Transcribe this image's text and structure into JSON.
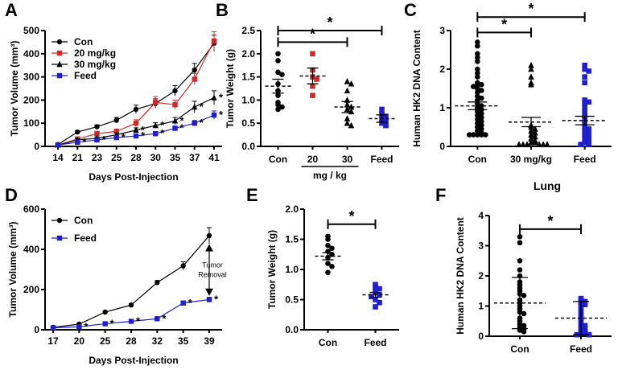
{
  "chart_data": [
    {
      "panel": "A",
      "type": "line",
      "xlabel": "Days Post-Injection",
      "ylabel": "Tumor Volume (mm³)",
      "x": [
        14,
        21,
        23,
        25,
        28,
        30,
        35,
        37,
        41
      ],
      "ylim": [
        0,
        500
      ],
      "yticks": [
        0,
        100,
        200,
        300,
        400,
        500
      ],
      "legend_position": "top-left",
      "series": [
        {
          "name": "Con",
          "color": "#000000",
          "marker": "circle",
          "values": [
            8,
            62,
            85,
            113,
            160,
            185,
            240,
            330,
            445
          ],
          "err": [
            3,
            6,
            8,
            12,
            18,
            20,
            22,
            28,
            35
          ]
        },
        {
          "name": "20 mg/kg",
          "color": "#d62728",
          "marker": "square",
          "values": [
            6,
            32,
            55,
            65,
            100,
            190,
            180,
            290,
            455
          ],
          "err": [
            3,
            8,
            10,
            10,
            15,
            25,
            20,
            25,
            40
          ]
        },
        {
          "name": "30 mg/kg",
          "color": "#000000",
          "marker": "triangle",
          "values": [
            6,
            28,
            35,
            50,
            70,
            90,
            110,
            170,
            210
          ],
          "err": [
            3,
            5,
            6,
            8,
            10,
            12,
            15,
            25,
            30
          ]
        },
        {
          "name": "Feed",
          "color": "#1f1fd0",
          "marker": "square",
          "values": [
            6,
            18,
            28,
            38,
            45,
            55,
            78,
            100,
            135
          ],
          "err": [
            2,
            3,
            4,
            5,
            6,
            8,
            10,
            12,
            18
          ]
        }
      ],
      "significance": "*"
    },
    {
      "panel": "B",
      "type": "scatter",
      "ylabel": "Tumor Weight (g)",
      "categories": [
        "Con",
        "20",
        "30",
        "Feed"
      ],
      "group_label": "mg / kg",
      "ylim": [
        0,
        2.5
      ],
      "yticks": [
        0.0,
        0.5,
        1.0,
        1.5,
        2.0,
        2.5
      ],
      "groups": [
        {
          "name": "Con",
          "color": "#000000",
          "marker": "circle",
          "mean": 1.3,
          "sem": 0.15,
          "points": [
            2.0,
            1.85,
            1.6,
            1.55,
            1.35,
            1.2,
            1.1,
            0.95,
            0.9,
            0.85,
            0.8
          ]
        },
        {
          "name": "20",
          "color": "#d62728",
          "marker": "square",
          "mean": 1.52,
          "sem": 0.17,
          "points": [
            2.0,
            1.65,
            1.5,
            1.45,
            1.3,
            1.1
          ]
        },
        {
          "name": "30",
          "color": "#000000",
          "marker": "triangle",
          "mean": 0.85,
          "sem": 0.12,
          "points": [
            1.4,
            1.35,
            1.2,
            1.0,
            0.9,
            0.85,
            0.8,
            0.75,
            0.6,
            0.5,
            0.45
          ]
        },
        {
          "name": "Feed",
          "color": "#1f1fd0",
          "marker": "square",
          "mean": 0.6,
          "sem": 0.08,
          "points": [
            0.8,
            0.7,
            0.65,
            0.6,
            0.55,
            0.5,
            0.45
          ]
        }
      ],
      "brackets": [
        {
          "from": "Con",
          "to": "30",
          "y": 2.25,
          "label": "*"
        },
        {
          "from": "Con",
          "to": "Feed",
          "y": 2.5,
          "label": "*"
        }
      ]
    },
    {
      "panel": "C",
      "type": "scatter",
      "ylabel": "Human HK2 DNA Content",
      "categories": [
        "Con",
        "30 mg/kg",
        "Feed"
      ],
      "ylim": [
        0,
        3
      ],
      "yticks": [
        0,
        1,
        2,
        3
      ],
      "groups": [
        {
          "name": "Con",
          "color": "#000000",
          "marker": "circle",
          "mean": 1.05,
          "sem": 0.1,
          "points": [
            2.7,
            2.6,
            2.4,
            2.3,
            2.2,
            2.0,
            1.9,
            1.8,
            1.65,
            1.6,
            1.6,
            1.55,
            1.5,
            1.45,
            1.4,
            1.3,
            1.25,
            1.2,
            1.1,
            1.05,
            1.0,
            0.95,
            0.9,
            0.85,
            0.8,
            0.75,
            0.7,
            0.65,
            0.6,
            0.55,
            0.5,
            0.45,
            0.4,
            0.35,
            0.3,
            0.3,
            0.3,
            0.3,
            0.3
          ]
        },
        {
          "name": "30 mg/kg",
          "color": "#000000",
          "marker": "triangle",
          "mean": 0.63,
          "sem": 0.12,
          "points": [
            2.1,
            2.0,
            1.8,
            1.65,
            1.6,
            0.55,
            0.5,
            0.45,
            0.4,
            0.35,
            0.3,
            0.25,
            0.2,
            0.15,
            0.1,
            0.1,
            0.05,
            0.05,
            0.05,
            0.05,
            0.05,
            0.05
          ]
        },
        {
          "name": "Feed",
          "color": "#1f1fd0",
          "marker": "square",
          "mean": 0.67,
          "sem": 0.11,
          "points": [
            2.1,
            2.0,
            1.95,
            1.8,
            1.65,
            1.2,
            1.15,
            1.1,
            1.0,
            0.9,
            0.8,
            0.7,
            0.6,
            0.5,
            0.45,
            0.4,
            0.35,
            0.3,
            0.25,
            0.2,
            0.15,
            0.1,
            0.05,
            0.05
          ]
        }
      ],
      "brackets": [
        {
          "from": "Con",
          "to": "30 mg/kg",
          "y": 2.95,
          "label": "*"
        },
        {
          "from": "Con",
          "to": "Feed",
          "y": 3.35,
          "label": "*"
        }
      ]
    },
    {
      "panel": "D",
      "type": "line",
      "xlabel": "Days Post-Injection",
      "ylabel": "Tumor Volume (mm³)",
      "x": [
        17,
        20,
        25,
        28,
        32,
        35,
        39
      ],
      "ylim": [
        0,
        600
      ],
      "yticks": [
        0,
        200,
        400,
        600
      ],
      "legend_position": "top-left",
      "series": [
        {
          "name": "Con",
          "color": "#000000",
          "marker": "circle",
          "values": [
            12,
            28,
            88,
            123,
            235,
            318,
            468
          ],
          "err": [
            3,
            5,
            6,
            8,
            10,
            20,
            40
          ]
        },
        {
          "name": "Feed",
          "color": "#1f1fd0",
          "marker": "square",
          "values": [
            10,
            15,
            30,
            42,
            55,
            133,
            150
          ],
          "err": [
            2,
            3,
            4,
            5,
            6,
            10,
            12
          ]
        }
      ],
      "annotation": "Tumor\nRemoval",
      "significance": "*"
    },
    {
      "panel": "E",
      "type": "scatter",
      "ylabel": "Tumor Weight (g)",
      "categories": [
        "Con",
        "Feed"
      ],
      "ylim": [
        0,
        2.0
      ],
      "yticks": [
        0.0,
        0.5,
        1.0,
        1.5,
        2.0
      ],
      "groups": [
        {
          "name": "Con",
          "color": "#000000",
          "marker": "circle",
          "mean": 1.22,
          "sem": 0.06,
          "points": [
            1.55,
            1.5,
            1.4,
            1.35,
            1.3,
            1.25,
            1.2,
            1.1,
            1.05,
            0.95
          ]
        },
        {
          "name": "Feed",
          "color": "#1f1fd0",
          "marker": "square",
          "mean": 0.58,
          "sem": 0.04,
          "points": [
            0.75,
            0.7,
            0.68,
            0.62,
            0.58,
            0.55,
            0.5,
            0.45,
            0.38
          ]
        }
      ],
      "brackets": [
        {
          "from": "Con",
          "to": "Feed",
          "y": 1.75,
          "label": "*"
        }
      ]
    },
    {
      "panel": "F",
      "type": "scatter",
      "title": "Lung",
      "ylabel": "Human HK2 DNA Content",
      "categories": [
        "Con",
        "Feed"
      ],
      "ylim": [
        0,
        4
      ],
      "yticks": [
        0,
        1,
        2,
        3,
        4
      ],
      "groups": [
        {
          "name": "Con",
          "color": "#000000",
          "marker": "circle",
          "mean": 1.1,
          "sd": 0.85,
          "points": [
            3.3,
            3.1,
            2.5,
            2.2,
            2.0,
            1.8,
            1.7,
            1.6,
            1.5,
            1.4,
            1.35,
            1.2,
            1.1,
            1.0,
            0.9,
            0.8,
            0.75,
            0.6,
            0.5,
            0.4,
            0.35,
            0.3,
            0.25,
            0.2,
            0.15
          ]
        },
        {
          "name": "Feed",
          "color": "#1f1fd0",
          "marker": "square",
          "mean": 0.6,
          "sd": 0.55,
          "points": [
            1.25,
            1.2,
            1.15,
            1.1,
            1.05,
            1.0,
            0.9,
            0.8,
            0.7,
            0.6,
            0.5,
            0.4,
            0.35,
            0.3,
            0.25,
            0.2,
            0.15,
            0.1,
            0.1,
            0.05,
            0.05
          ]
        }
      ],
      "brackets": [
        {
          "from": "Con",
          "to": "Feed",
          "y": 3.55,
          "label": "*"
        }
      ]
    }
  ]
}
